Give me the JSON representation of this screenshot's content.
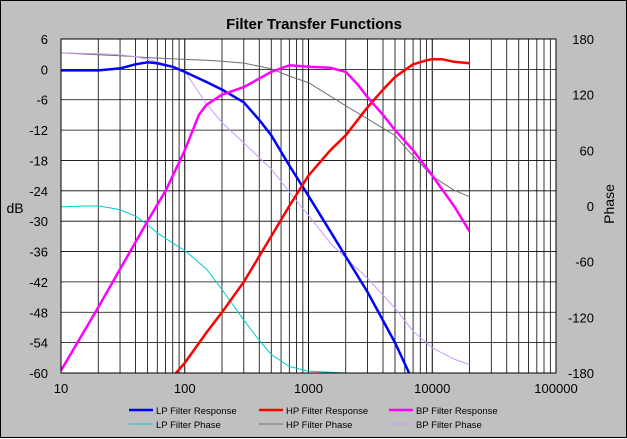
{
  "chart_data": {
    "type": "line",
    "title": "Filter Transfer Functions",
    "xlabel": "",
    "ylabel": "dB",
    "y2label": "Phase",
    "xscale": "log",
    "xlim": [
      10,
      100000
    ],
    "ylim": [
      -60,
      6
    ],
    "y2lim": [
      -180,
      180
    ],
    "x_ticks": [
      "10",
      "100",
      "1000",
      "10000",
      "100000"
    ],
    "y_ticks": [
      "6",
      "0",
      "-6",
      "-12",
      "-18",
      "-24",
      "-30",
      "-36",
      "-42",
      "-48",
      "-54",
      "-60"
    ],
    "y2_ticks": [
      "180",
      "120",
      "60",
      "0",
      "-60",
      "-120",
      "-180"
    ],
    "grid": true,
    "legend_position": "bottom",
    "series": [
      {
        "name": "LP Filter Response",
        "axis": "left",
        "color": "#0000ff",
        "width": 2.5,
        "x": [
          10,
          20,
          30,
          40,
          50,
          60,
          80,
          100,
          150,
          200,
          300,
          400,
          500,
          700,
          1000,
          1500,
          2000,
          3000,
          5000,
          6500
        ],
        "y": [
          -0.2,
          -0.2,
          0.2,
          1.0,
          1.4,
          1.2,
          0.5,
          -0.5,
          -2.5,
          -4.0,
          -6.5,
          -10.0,
          -13.0,
          -19.0,
          -25.0,
          -32.0,
          -37.0,
          -44.0,
          -54.0,
          -60.0
        ]
      },
      {
        "name": "HP Filter Response",
        "axis": "left",
        "color": "#ff0000",
        "width": 2.5,
        "x": [
          85,
          100,
          150,
          200,
          300,
          500,
          700,
          1000,
          1500,
          2000,
          3000,
          4000,
          5000,
          7000,
          9000,
          10000,
          12000,
          15000,
          20000
        ],
        "y": [
          -60,
          -58,
          -52,
          -48,
          -42,
          -33,
          -27,
          -21,
          -16,
          -13,
          -7.5,
          -4.0,
          -1.5,
          1.0,
          1.8,
          2.0,
          2.0,
          1.5,
          1.2
        ]
      },
      {
        "name": "BP Filter Response",
        "axis": "left",
        "color": "#ff00ff",
        "width": 2.5,
        "x": [
          10,
          20,
          30,
          50,
          70,
          100,
          130,
          150,
          200,
          300,
          500,
          700,
          1000,
          1500,
          2000,
          2500,
          3000,
          4000,
          5000,
          7000,
          10000,
          15000,
          20000
        ],
        "y": [
          -59.5,
          -47,
          -39.5,
          -30,
          -24,
          -16,
          -9,
          -7,
          -5,
          -3.5,
          -0.5,
          0.8,
          0.5,
          0.3,
          -0.5,
          -3.0,
          -5.5,
          -9.0,
          -12.0,
          -16.0,
          -21.0,
          -27.0,
          -32.0
        ]
      },
      {
        "name": "LP Filter Phase",
        "axis": "right",
        "color": "#00cccc",
        "width": 1,
        "x": [
          10,
          15,
          20,
          25,
          30,
          40,
          50,
          60,
          80,
          100,
          150,
          200,
          300,
          400,
          500,
          700,
          1000,
          2000,
          4000
        ],
        "y": [
          -1,
          0,
          0,
          -2,
          -4,
          -11,
          -20,
          -29,
          -40,
          -48,
          -68,
          -90,
          -123,
          -145,
          -160,
          -173,
          -178,
          -180,
          -180
        ]
      },
      {
        "name": "HP Filter Phase",
        "axis": "right",
        "color": "#707070",
        "width": 1,
        "x": [
          10,
          20,
          30,
          50,
          70,
          100,
          150,
          200,
          300,
          500,
          700,
          1000,
          2000,
          3000,
          5000,
          7000,
          10000,
          15000,
          20000
        ],
        "y": [
          165,
          163,
          162,
          160,
          159,
          158,
          157,
          156,
          154,
          148,
          140,
          133,
          108,
          94,
          76,
          54,
          32,
          17,
          10
        ]
      },
      {
        "name": "BP Filter Phase",
        "axis": "right",
        "color": "#cc99ff",
        "width": 1,
        "x": [
          10,
          20,
          30,
          40,
          50,
          70,
          100,
          150,
          200,
          300,
          500,
          700,
          1000,
          1500,
          2000,
          3000,
          5000,
          7000,
          10000,
          15000,
          20000
        ],
        "y": [
          165,
          164,
          163,
          161,
          158,
          153,
          145,
          110,
          90,
          68,
          40,
          15,
          -10,
          -40,
          -56,
          -78,
          -110,
          -135,
          -153,
          -165,
          -171
        ]
      }
    ]
  }
}
